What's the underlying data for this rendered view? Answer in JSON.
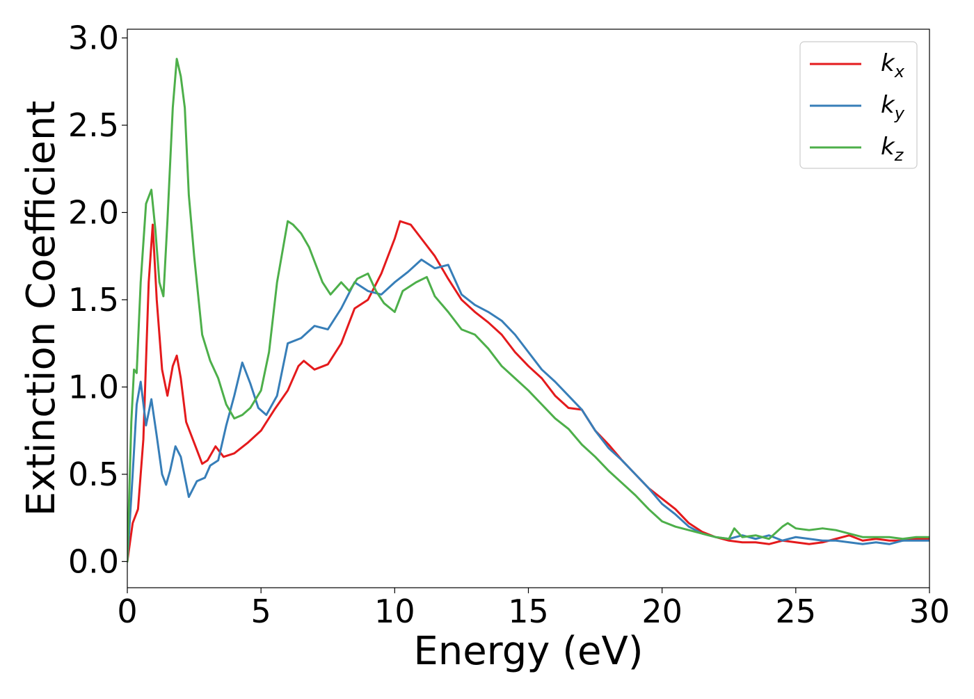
{
  "chart_data": {
    "type": "line",
    "title": "",
    "xlabel": "Energy (eV)",
    "ylabel": "Extinction Coefficient",
    "xlim": [
      0,
      30
    ],
    "ylim": [
      -0.15,
      3.05
    ],
    "xticks": [
      0,
      5,
      10,
      15,
      20,
      25,
      30
    ],
    "xtick_labels": [
      "0",
      "5",
      "10",
      "15",
      "20",
      "25",
      "30"
    ],
    "yticks": [
      0.0,
      0.5,
      1.0,
      1.5,
      2.0,
      2.5,
      3.0
    ],
    "ytick_labels": [
      "0.0",
      "0.5",
      "1.0",
      "1.5",
      "2.0",
      "2.5",
      "3.0"
    ],
    "grid": false,
    "legend": {
      "position": "top-right"
    },
    "series": [
      {
        "name": "k_x",
        "label_main": "k",
        "label_sub": "x",
        "color": "#e41a1c",
        "points": [
          [
            0,
            0
          ],
          [
            0.2,
            0.22
          ],
          [
            0.4,
            0.3
          ],
          [
            0.6,
            0.7
          ],
          [
            0.8,
            1.6
          ],
          [
            0.95,
            1.93
          ],
          [
            1.1,
            1.5
          ],
          [
            1.3,
            1.1
          ],
          [
            1.5,
            0.95
          ],
          [
            1.7,
            1.12
          ],
          [
            1.85,
            1.18
          ],
          [
            2.0,
            1.05
          ],
          [
            2.2,
            0.8
          ],
          [
            2.5,
            0.68
          ],
          [
            2.8,
            0.56
          ],
          [
            3.0,
            0.58
          ],
          [
            3.3,
            0.66
          ],
          [
            3.6,
            0.6
          ],
          [
            4.0,
            0.62
          ],
          [
            4.5,
            0.68
          ],
          [
            5.0,
            0.75
          ],
          [
            5.5,
            0.87
          ],
          [
            6.0,
            0.98
          ],
          [
            6.4,
            1.12
          ],
          [
            6.6,
            1.15
          ],
          [
            7.0,
            1.1
          ],
          [
            7.5,
            1.13
          ],
          [
            8.0,
            1.25
          ],
          [
            8.5,
            1.45
          ],
          [
            9.0,
            1.5
          ],
          [
            9.5,
            1.65
          ],
          [
            10.0,
            1.85
          ],
          [
            10.2,
            1.95
          ],
          [
            10.6,
            1.93
          ],
          [
            11.0,
            1.85
          ],
          [
            11.5,
            1.75
          ],
          [
            12.0,
            1.62
          ],
          [
            12.5,
            1.5
          ],
          [
            13.0,
            1.43
          ],
          [
            13.5,
            1.37
          ],
          [
            14.0,
            1.3
          ],
          [
            14.5,
            1.2
          ],
          [
            15.0,
            1.12
          ],
          [
            15.5,
            1.05
          ],
          [
            16.0,
            0.95
          ],
          [
            16.5,
            0.88
          ],
          [
            17.0,
            0.87
          ],
          [
            17.5,
            0.75
          ],
          [
            18.0,
            0.67
          ],
          [
            18.5,
            0.58
          ],
          [
            19.0,
            0.5
          ],
          [
            19.5,
            0.42
          ],
          [
            20.0,
            0.36
          ],
          [
            20.5,
            0.3
          ],
          [
            21.0,
            0.22
          ],
          [
            21.5,
            0.17
          ],
          [
            22.0,
            0.14
          ],
          [
            22.5,
            0.12
          ],
          [
            23.0,
            0.11
          ],
          [
            23.5,
            0.11
          ],
          [
            24.0,
            0.1
          ],
          [
            24.5,
            0.12
          ],
          [
            25.0,
            0.11
          ],
          [
            25.5,
            0.1
          ],
          [
            26.0,
            0.11
          ],
          [
            26.5,
            0.13
          ],
          [
            27.0,
            0.15
          ],
          [
            27.5,
            0.12
          ],
          [
            28.0,
            0.13
          ],
          [
            28.5,
            0.12
          ],
          [
            29.0,
            0.12
          ],
          [
            29.5,
            0.13
          ],
          [
            30.0,
            0.13
          ]
        ]
      },
      {
        "name": "k_y",
        "label_main": "k",
        "label_sub": "y",
        "color": "#377eb8",
        "points": [
          [
            0,
            0
          ],
          [
            0.2,
            0.5
          ],
          [
            0.35,
            0.9
          ],
          [
            0.5,
            1.03
          ],
          [
            0.7,
            0.78
          ],
          [
            0.9,
            0.93
          ],
          [
            1.1,
            0.72
          ],
          [
            1.3,
            0.5
          ],
          [
            1.45,
            0.44
          ],
          [
            1.6,
            0.52
          ],
          [
            1.8,
            0.66
          ],
          [
            2.0,
            0.6
          ],
          [
            2.3,
            0.37
          ],
          [
            2.6,
            0.46
          ],
          [
            2.9,
            0.48
          ],
          [
            3.1,
            0.55
          ],
          [
            3.4,
            0.58
          ],
          [
            3.7,
            0.78
          ],
          [
            4.0,
            0.95
          ],
          [
            4.3,
            1.14
          ],
          [
            4.6,
            1.02
          ],
          [
            4.9,
            0.88
          ],
          [
            5.2,
            0.84
          ],
          [
            5.6,
            0.95
          ],
          [
            6.0,
            1.25
          ],
          [
            6.5,
            1.28
          ],
          [
            7.0,
            1.35
          ],
          [
            7.5,
            1.33
          ],
          [
            8.0,
            1.45
          ],
          [
            8.5,
            1.6
          ],
          [
            9.0,
            1.55
          ],
          [
            9.5,
            1.53
          ],
          [
            10.0,
            1.6
          ],
          [
            10.5,
            1.66
          ],
          [
            11.0,
            1.73
          ],
          [
            11.5,
            1.68
          ],
          [
            12.0,
            1.7
          ],
          [
            12.5,
            1.53
          ],
          [
            13.0,
            1.47
          ],
          [
            13.5,
            1.43
          ],
          [
            14.0,
            1.38
          ],
          [
            14.5,
            1.3
          ],
          [
            15.0,
            1.2
          ],
          [
            15.5,
            1.1
          ],
          [
            16.0,
            1.03
          ],
          [
            16.5,
            0.95
          ],
          [
            17.0,
            0.87
          ],
          [
            17.5,
            0.75
          ],
          [
            18.0,
            0.65
          ],
          [
            18.5,
            0.58
          ],
          [
            19.0,
            0.5
          ],
          [
            19.5,
            0.42
          ],
          [
            20.0,
            0.33
          ],
          [
            20.5,
            0.27
          ],
          [
            21.0,
            0.2
          ],
          [
            21.5,
            0.16
          ],
          [
            22.0,
            0.14
          ],
          [
            22.5,
            0.13
          ],
          [
            23.0,
            0.15
          ],
          [
            23.5,
            0.13
          ],
          [
            24.0,
            0.15
          ],
          [
            24.5,
            0.12
          ],
          [
            25.0,
            0.14
          ],
          [
            25.5,
            0.13
          ],
          [
            26.0,
            0.12
          ],
          [
            26.5,
            0.12
          ],
          [
            27.0,
            0.11
          ],
          [
            27.5,
            0.1
          ],
          [
            28.0,
            0.11
          ],
          [
            28.5,
            0.1
          ],
          [
            29.0,
            0.12
          ],
          [
            29.5,
            0.12
          ],
          [
            30.0,
            0.12
          ]
        ]
      },
      {
        "name": "k_z",
        "label_main": "k",
        "label_sub": "z",
        "color": "#4daf4a",
        "points": [
          [
            0,
            0
          ],
          [
            0.15,
            0.8
          ],
          [
            0.25,
            1.1
          ],
          [
            0.35,
            1.08
          ],
          [
            0.5,
            1.6
          ],
          [
            0.7,
            2.05
          ],
          [
            0.9,
            2.13
          ],
          [
            1.05,
            1.9
          ],
          [
            1.2,
            1.6
          ],
          [
            1.35,
            1.52
          ],
          [
            1.5,
            1.95
          ],
          [
            1.7,
            2.6
          ],
          [
            1.85,
            2.88
          ],
          [
            2.0,
            2.78
          ],
          [
            2.15,
            2.6
          ],
          [
            2.3,
            2.1
          ],
          [
            2.5,
            1.75
          ],
          [
            2.8,
            1.3
          ],
          [
            3.1,
            1.15
          ],
          [
            3.4,
            1.05
          ],
          [
            3.7,
            0.9
          ],
          [
            4.0,
            0.82
          ],
          [
            4.3,
            0.84
          ],
          [
            4.6,
            0.88
          ],
          [
            5.0,
            0.98
          ],
          [
            5.3,
            1.2
          ],
          [
            5.6,
            1.6
          ],
          [
            6.0,
            1.95
          ],
          [
            6.2,
            1.93
          ],
          [
            6.5,
            1.88
          ],
          [
            6.8,
            1.8
          ],
          [
            7.0,
            1.72
          ],
          [
            7.3,
            1.6
          ],
          [
            7.6,
            1.53
          ],
          [
            8.0,
            1.6
          ],
          [
            8.3,
            1.55
          ],
          [
            8.6,
            1.62
          ],
          [
            9.0,
            1.65
          ],
          [
            9.3,
            1.55
          ],
          [
            9.6,
            1.48
          ],
          [
            10.0,
            1.43
          ],
          [
            10.3,
            1.55
          ],
          [
            10.8,
            1.6
          ],
          [
            11.2,
            1.63
          ],
          [
            11.5,
            1.52
          ],
          [
            12.0,
            1.43
          ],
          [
            12.5,
            1.33
          ],
          [
            13.0,
            1.3
          ],
          [
            13.5,
            1.22
          ],
          [
            14.0,
            1.12
          ],
          [
            14.5,
            1.05
          ],
          [
            15.0,
            0.98
          ],
          [
            15.5,
            0.9
          ],
          [
            16.0,
            0.82
          ],
          [
            16.5,
            0.76
          ],
          [
            17.0,
            0.67
          ],
          [
            17.5,
            0.6
          ],
          [
            18.0,
            0.52
          ],
          [
            18.5,
            0.45
          ],
          [
            19.0,
            0.38
          ],
          [
            19.5,
            0.3
          ],
          [
            20.0,
            0.23
          ],
          [
            20.5,
            0.2
          ],
          [
            21.0,
            0.18
          ],
          [
            21.5,
            0.16
          ],
          [
            22.0,
            0.14
          ],
          [
            22.5,
            0.13
          ],
          [
            22.7,
            0.19
          ],
          [
            23.0,
            0.14
          ],
          [
            23.5,
            0.15
          ],
          [
            24.0,
            0.13
          ],
          [
            24.5,
            0.2
          ],
          [
            24.7,
            0.22
          ],
          [
            25.0,
            0.19
          ],
          [
            25.5,
            0.18
          ],
          [
            26.0,
            0.19
          ],
          [
            26.5,
            0.18
          ],
          [
            27.0,
            0.16
          ],
          [
            27.5,
            0.14
          ],
          [
            28.0,
            0.14
          ],
          [
            28.5,
            0.14
          ],
          [
            29.0,
            0.13
          ],
          [
            29.5,
            0.14
          ],
          [
            30.0,
            0.14
          ]
        ]
      }
    ]
  }
}
